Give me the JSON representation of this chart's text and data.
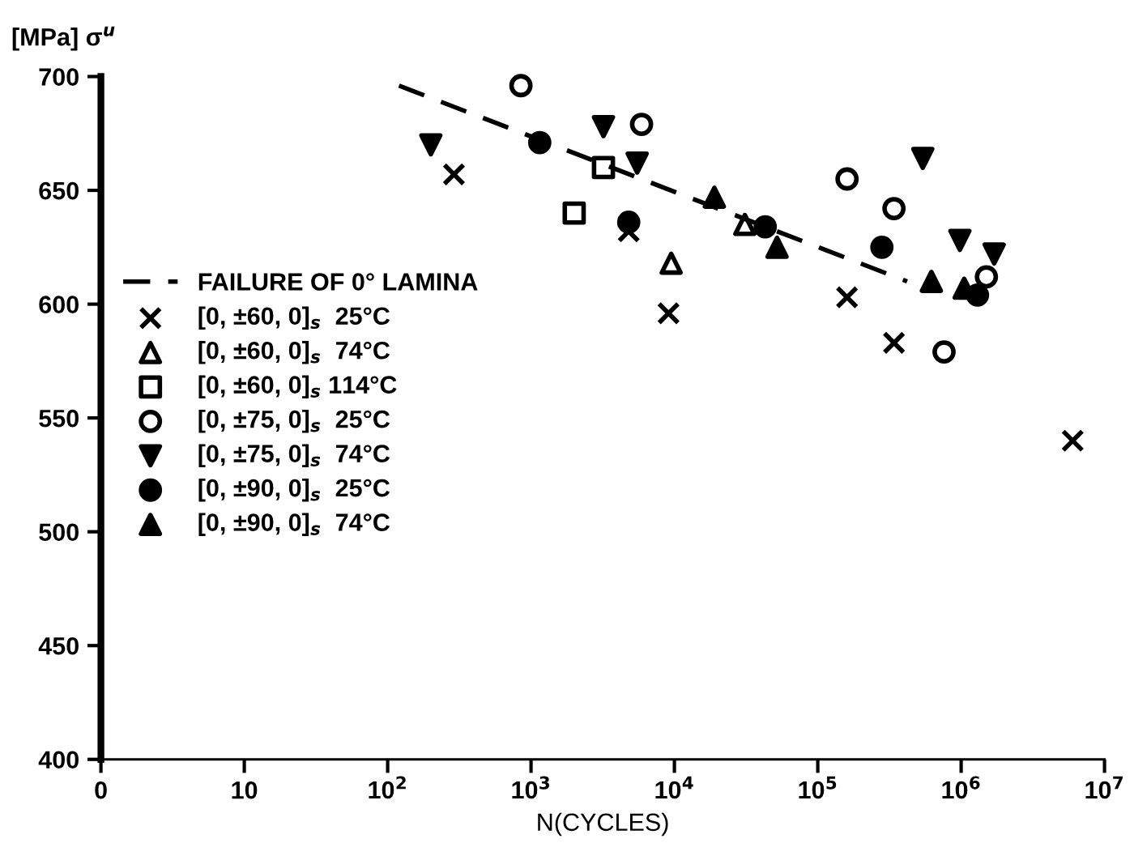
{
  "chart_data": {
    "type": "scatter",
    "xlabel": "N(CYCLES)",
    "ylabel": "[MPa] σ$^{u}$",
    "log": "x",
    "xlim": [
      0,
      10000000
    ],
    "ylim": [
      400,
      700
    ],
    "xticks": [
      0,
      10,
      {
        "value": 100,
        "label": "10$^{2}$"
      },
      {
        "value": 1000,
        "label": "10$^{3}$"
      },
      {
        "value": 10000,
        "label": "10$^{4}$"
      },
      {
        "value": 100000,
        "label": "10$^{5}$"
      },
      {
        "value": 1000000,
        "label": "10$^{6}$"
      },
      {
        "value": 10000000,
        "label": "10$^{7}$"
      }
    ],
    "yticks": [
      400,
      450,
      500,
      550,
      600,
      650,
      700
    ],
    "grid": false,
    "legend": "left",
    "series": [
      {
        "type": "line",
        "name": "FAILURE OF 0° LAMINA",
        "color": "#000000",
        "line_style": "dashed",
        "marker": "none",
        "x": [
          120,
          420000
        ],
        "values": [
          696,
          610
        ]
      },
      {
        "name": "[0, ±60, 0]$_{s}$  25°C",
        "color": "#000000",
        "marker": "cross",
        "x": [
          290,
          4800,
          9100,
          160000,
          340000,
          6000000
        ],
        "values": [
          657,
          632,
          596,
          603,
          583,
          540
        ]
      },
      {
        "name": "[0, ±60, 0]$_{s}$  74°C",
        "color": "#000000",
        "marker": "triangle_open",
        "x": [
          9500,
          31000
        ],
        "values": [
          618,
          635
        ]
      },
      {
        "name": "[0, ±60, 0]$_{s}$ 114°C",
        "color": "#000000",
        "marker": "square_open",
        "x": [
          2000,
          3200
        ],
        "values": [
          640,
          660
        ]
      },
      {
        "name": "[0, ±75, 0]$_{s}$  25°C",
        "color": "#000000",
        "marker": "circle_open",
        "x": [
          850,
          5900,
          160000,
          340000,
          760000,
          1500000
        ],
        "values": [
          696,
          679,
          655,
          642,
          579,
          612
        ]
      },
      {
        "name": "[0, ±75, 0]$_{s}$  74°C",
        "color": "#000000",
        "marker": "triangle_down",
        "x": [
          200,
          3200,
          5500,
          540000,
          980000,
          1700000
        ],
        "values": [
          670,
          678,
          662,
          664,
          628,
          622
        ]
      },
      {
        "name": "[0, ±90, 0]$_{s}$  25°C",
        "color": "#000000",
        "marker": "circle",
        "x": [
          1150,
          4800,
          43000,
          280000,
          1300000
        ],
        "values": [
          671,
          636,
          634,
          625,
          604
        ]
      },
      {
        "name": "[0, ±90, 0]$_{s}$  74°C",
        "color": "#000000",
        "marker": "triangle",
        "x": [
          19000,
          52000,
          620000,
          1050000
        ],
        "values": [
          647,
          625,
          610,
          607
        ]
      }
    ]
  }
}
